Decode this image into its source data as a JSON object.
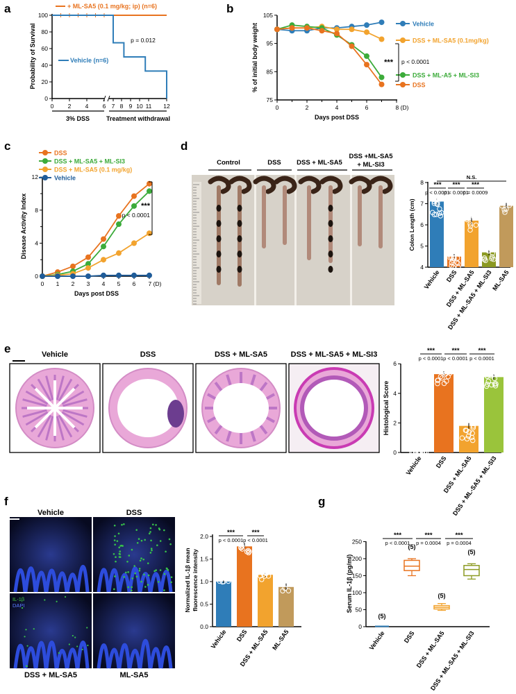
{
  "colors": {
    "vehicle": "#2F7DB8",
    "dss": "#E8731F",
    "sa5": "#F2A32E",
    "si3": "#3CAB3A",
    "mlsa5": "#C19A5B",
    "olive": "#8C9A22",
    "lime": "#9AC43B",
    "blueDark": "#1F5C99"
  },
  "panel_letters": [
    "a",
    "b",
    "c",
    "d",
    "e",
    "f",
    "g"
  ],
  "panel_a": {
    "ylabel": "Probability of Survival",
    "yticks": [
      "0",
      "20",
      "40",
      "60",
      "80",
      "100"
    ],
    "xticks": [
      "0",
      "2",
      "4",
      "6",
      "7",
      "8",
      "9",
      "10",
      "11",
      "12"
    ],
    "legend_sa5": "+ ML-SA5 (0.1 mg/kg; ip) (n=6)",
    "legend_vehicle": "Vehicle (n=6)",
    "pvalue": "p = 0.012",
    "xgroup1": "3% DSS",
    "xgroup2": "Treatment withdrawal"
  },
  "chart_data": [
    {
      "panel": "a",
      "type": "line",
      "ylabel": "Probability of Survival",
      "ylim": [
        0,
        100
      ],
      "series": [
        {
          "name": "+ ML-SA5 (0.1 mg/kg; ip) (n=6)",
          "x": [
            0,
            1,
            2,
            3,
            4,
            5,
            6,
            7,
            8,
            9,
            10,
            11,
            12
          ],
          "values": [
            100,
            100,
            100,
            100,
            100,
            100,
            100,
            100,
            100,
            100,
            100,
            100,
            100
          ]
        },
        {
          "name": "Vehicle (n=6)",
          "x": [
            0,
            6,
            7,
            8,
            10,
            12
          ],
          "values": [
            100,
            100,
            67,
            50,
            33,
            0
          ]
        }
      ]
    },
    {
      "panel": "b",
      "type": "line",
      "xlabel": "Days post DSS",
      "ylabel": "% of initial body weight",
      "ylim": [
        75,
        105
      ],
      "xlim": [
        0,
        8
      ],
      "x": [
        0,
        1,
        2,
        3,
        4,
        5,
        6,
        7
      ],
      "series": [
        {
          "name": "Vehicle",
          "values": [
            100,
            99.5,
            99.5,
            100.5,
            100.5,
            101,
            101.5,
            102.5
          ]
        },
        {
          "name": "DSS + ML-SA5 (0.1mg/kg)",
          "values": [
            100,
            100.5,
            100.5,
            101,
            100,
            100,
            99,
            96.5
          ]
        },
        {
          "name": "DSS + ML-A5 + ML-SI3",
          "values": [
            100,
            101.5,
            101,
            100.5,
            98,
            94.5,
            90.5,
            83
          ]
        },
        {
          "name": "DSS",
          "values": [
            100,
            100.5,
            100.5,
            99.5,
            98.5,
            94,
            87.5,
            80.5
          ]
        }
      ]
    },
    {
      "panel": "c",
      "type": "line",
      "xlabel": "Days post DSS",
      "ylabel": "Disease Activity Index",
      "ylim": [
        0,
        12
      ],
      "xlim": [
        0,
        7
      ],
      "x": [
        0,
        1,
        2,
        3,
        4,
        5,
        6,
        7
      ],
      "series": [
        {
          "name": "DSS",
          "values": [
            0,
            0.5,
            1.2,
            2.3,
            4.5,
            7.3,
            9.7,
            11.2
          ]
        },
        {
          "name": "DSS + ML-SA5 + ML-SI3",
          "values": [
            0,
            0.2,
            0.6,
            1.5,
            3.6,
            6.3,
            8.5,
            10.3
          ]
        },
        {
          "name": "DSS + ML-SA5 (0.1 mg/kg)",
          "values": [
            0,
            0.1,
            0.3,
            1,
            2,
            2.8,
            4,
            5.2
          ]
        },
        {
          "name": "Vehicle",
          "values": [
            0,
            0,
            0,
            0,
            0.1,
            0.1,
            0.1,
            0.1
          ]
        }
      ]
    },
    {
      "panel": "d",
      "type": "bar",
      "ylabel": "Colon Length (cm)",
      "ylim": [
        4,
        8
      ],
      "categories": [
        "Vehicle",
        "DSS",
        "DSS + ML-SA5",
        "DSS + ML-SA5 + ML-SI3",
        "ML-SA5"
      ],
      "values": [
        7.1,
        4.5,
        6.2,
        4.7,
        6.9
      ]
    },
    {
      "panel": "e",
      "type": "bar",
      "ylabel": "Histological Score",
      "ylim": [
        0,
        6
      ],
      "categories": [
        "Vehicle",
        "DSS",
        "DSS + ML-SA5",
        "DSS + ML-SA5 + ML-SI3"
      ],
      "values": [
        0,
        5.3,
        1.8,
        5.1
      ]
    },
    {
      "panel": "f",
      "type": "bar",
      "ylabel": "Normalized IL-1β mean fluorescence intensity",
      "ylim": [
        0,
        2
      ],
      "categories": [
        "Vehicle",
        "DSS",
        "DSS + ML-SA5",
        "ML-SA5"
      ],
      "values": [
        1,
        1.78,
        1.15,
        0.88
      ]
    },
    {
      "panel": "g",
      "type": "box",
      "ylabel": "Serum IL-1β (pg/ml)",
      "ylim": [
        0,
        250
      ],
      "categories": [
        "Vehicle",
        "DSS",
        "DSS + ML-SA5",
        "DSS + ML-SA5 + ML-SI3"
      ],
      "values": [
        0,
        178,
        57,
        168
      ],
      "n": [
        "(5)",
        "(5)",
        "(5)",
        "(5)"
      ]
    }
  ],
  "panel_b": {
    "ylabel": "% of initial body weight",
    "xlabel": "Days post DSS",
    "yticks": [
      "75",
      "85",
      "95",
      "105"
    ],
    "xticks": [
      "0",
      "2",
      "4",
      "6",
      "8 (D)"
    ],
    "legend": [
      "Vehicle",
      "DSS + ML-SA5 (0.1mg/kg)",
      "DSS + ML-A5 + ML-SI3",
      "DSS"
    ],
    "stars": "***",
    "pvalue": "p < 0.0001"
  },
  "panel_c": {
    "ylabel": "Disease Activity Index",
    "xlabel": "Days post DSS",
    "yticks": [
      "0",
      "4",
      "8",
      "12"
    ],
    "xticks": [
      "0",
      "1",
      "2",
      "3",
      "4",
      "5",
      "6",
      "7 (D)"
    ],
    "legend": [
      "DSS",
      "DSS + ML-SA5 + ML-SI3",
      "DSS + ML-SA5 (0.1 mg/kg)",
      "Vehicle"
    ],
    "stars": "***",
    "pvalue": "p < 0.0001"
  },
  "panel_d": {
    "groups": [
      "Control",
      "DSS",
      "DSS + ML-SA5",
      "DSS +ML-SA5\n+ ML-SI3"
    ],
    "group1": "Control",
    "group2": "DSS",
    "group3": "DSS + ML-SA5",
    "group4a": "DSS +ML-SA5",
    "group4b": "+ ML-SI3",
    "ylabel": "Colon Length (cm)",
    "yticks": [
      "4",
      "5",
      "6",
      "7",
      "8"
    ],
    "xlabels": [
      "Vehicle",
      "DSS",
      "DSS + ML-SA5",
      "DSS + ML-SA5 + ML-SI3",
      "ML-SA5"
    ],
    "sig": [
      {
        "stars": "***",
        "p": "p < 0.0001"
      },
      {
        "stars": "***",
        "p": "p < 0.0001"
      },
      {
        "stars": "***",
        "p": "p = 0.0009"
      }
    ],
    "ns": "N.S."
  },
  "panel_e": {
    "titles": [
      "Vehicle",
      "DSS",
      "DSS + ML-SA5",
      "DSS + ML-SA5 + ML-SI3"
    ],
    "ylabel": "Histological Score",
    "yticks": [
      "0",
      "2",
      "4",
      "6"
    ],
    "xlabels": [
      "Vehicle",
      "DSS",
      "DSS + ML-SA5",
      "DSS + ML-SA5 + ML-SI3"
    ],
    "sig": [
      {
        "stars": "***",
        "p": "p < 0.0001"
      },
      {
        "stars": "***",
        "p": "p < 0.0001"
      },
      {
        "stars": "***",
        "p": "p < 0.0001"
      }
    ]
  },
  "panel_f": {
    "titles": [
      "Vehicle",
      "DSS",
      "DSS + ML-SA5",
      "ML-SA5"
    ],
    "legend_il": "IL-1β",
    "legend_dapi": "DAPI",
    "ylabel1": "Normalized IL-1β mean",
    "ylabel2": "fluorescence intensity",
    "yticks": [
      "0.0",
      "0.5",
      "1.0",
      "1.5",
      "2.0"
    ],
    "xlabels": [
      "Vehicle",
      "DSS",
      "DSS + ML-SA5",
      "ML-SA5"
    ],
    "sig": [
      {
        "stars": "***",
        "p": "p < 0.0001"
      },
      {
        "stars": "***",
        "p": "p < 0.0001"
      }
    ]
  },
  "panel_g": {
    "ylabel": "Serum IL-1β (pg/ml)",
    "yticks": [
      "0",
      "50",
      "100",
      "150",
      "200",
      "250"
    ],
    "xlabels": [
      "Vehicle",
      "DSS",
      "DSS + ML-SA5",
      "DSS + ML-SA5 + ML-SI3"
    ],
    "n": [
      "(5)",
      "(5)",
      "(5)",
      "(5)"
    ],
    "sig": [
      {
        "stars": "***",
        "p": "p < 0.0001"
      },
      {
        "stars": "***",
        "p": "p = 0.0004"
      },
      {
        "stars": "***",
        "p": "p = 0.0004"
      }
    ]
  }
}
